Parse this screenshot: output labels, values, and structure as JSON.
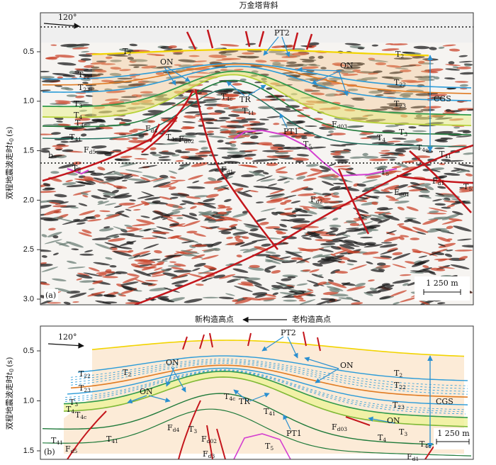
{
  "title": "万金塔背斜",
  "y_axis_label": {
    "main": "双程地震波走时",
    "var": "t",
    "sub": "0",
    "unit": "(s)"
  },
  "direction": {
    "new": "新构造高点",
    "old": "老构造高点"
  },
  "panel_a": {
    "tag": "(a)",
    "azimuth": "120°",
    "scale_bar": "1 250 m",
    "yticks": [
      "0.5",
      "1.0",
      "1.5",
      "2.0",
      "2.5",
      "3.0"
    ],
    "labels": [
      "PT2",
      "ON",
      "ON",
      {
        "t": "T",
        "s": "2"
      },
      {
        "t": "T",
        "s": "2"
      },
      {
        "t": "T",
        "s": "22"
      },
      {
        "t": "T",
        "s": "23"
      },
      {
        "t": "T",
        "s": "4c"
      },
      "TR",
      {
        "t": "T",
        "s": "41"
      },
      {
        "t": "T",
        "s": "3"
      },
      {
        "t": "T",
        "s": "4"
      },
      {
        "t": "T",
        "s": "4c"
      },
      {
        "t": "F",
        "s": "d4"
      },
      {
        "t": "T",
        "s": "41"
      },
      {
        "t": "T",
        "s": "4c"
      },
      {
        "t": "F",
        "s": "d5"
      },
      {
        "t": "F",
        "s": "d02"
      },
      "PT1",
      {
        "t": "F",
        "s": "d03"
      },
      {
        "t": "T",
        "s": "5"
      },
      {
        "t": "T",
        "s": "22"
      },
      {
        "t": "T",
        "s": "23"
      },
      "CGS",
      {
        "t": "T",
        "s": "3"
      },
      {
        "t": "T",
        "s": "4"
      },
      {
        "t": "T",
        "s": "4c"
      },
      {
        "t": "T",
        "s": "41"
      },
      {
        "t": "T",
        "s": "g"
      },
      "b",
      {
        "t": "F",
        "s": "d1"
      },
      {
        "t": "T",
        "s": "5"
      },
      {
        "t": "F",
        "s": "d1"
      },
      {
        "t": "T",
        "s": "5"
      },
      {
        "t": "F",
        "s": "d01"
      },
      {
        "t": "F",
        "s": "d2"
      }
    ]
  },
  "panel_b": {
    "tag": "(b)",
    "azimuth": "120°",
    "scale_bar": "1 250 m",
    "yticks": [
      "0.5",
      "1.0",
      "1.5"
    ],
    "labels": [
      "PT2",
      "ON",
      "ON",
      "ON",
      "ON",
      {
        "t": "T",
        "s": "2"
      },
      {
        "t": "T",
        "s": "2"
      },
      {
        "t": "T",
        "s": "22"
      },
      {
        "t": "T",
        "s": "23"
      },
      {
        "t": "T",
        "s": "22"
      },
      {
        "t": "T",
        "s": "23"
      },
      "CGS",
      {
        "t": "T",
        "s": "3"
      },
      {
        "t": "T",
        "s": "4"
      },
      {
        "t": "T",
        "s": "4c"
      },
      {
        "t": "T",
        "s": "4c"
      },
      "TR",
      {
        "t": "T",
        "s": "41"
      },
      {
        "t": "F",
        "s": "d4"
      },
      {
        "t": "T",
        "s": "3"
      },
      {
        "t": "F",
        "s": "d02"
      },
      {
        "t": "T",
        "s": "41"
      },
      {
        "t": "T",
        "s": "41"
      },
      {
        "t": "F",
        "s": "d5"
      },
      {
        "t": "F",
        "s": "d3"
      },
      "PT1",
      {
        "t": "F",
        "s": "d03"
      },
      {
        "t": "T",
        "s": "5"
      },
      {
        "t": "T",
        "s": "4"
      },
      {
        "t": "T",
        "s": "3"
      },
      {
        "t": "T",
        "s": "4c"
      },
      {
        "t": "F",
        "s": "d1"
      }
    ]
  }
}
